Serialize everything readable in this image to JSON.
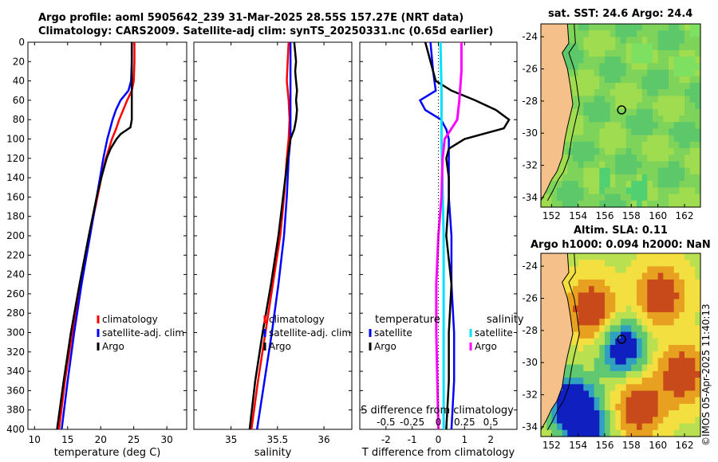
{
  "title_line1": "Argo profile: aoml 5905642_239 31-Mar-2025 28.55S 157.27E (NRT data)",
  "title_line2": "Climatology: CARS2009. Satellite-adj clim: synTS_20250331.nc (0.65d earlier)",
  "sst_map_title": "sat. SST: 24.6 Argo: 24.4",
  "sla_map_title_line1": "Altim. SLA: 0.11",
  "sla_map_title_line2": "Argo h1000: 0.094 h2000: NaN",
  "credit": "©IMOS 05-Apr-2025 11:40:13",
  "colors": {
    "climatology": "#ff0000",
    "satellite": "#0000ff",
    "argo": "#000000",
    "sat_salinity": "#00e0ff",
    "argo_salinity": "#ff00ff"
  },
  "chart_data": [
    {
      "type": "line",
      "name": "temperature",
      "xlabel": "temperature (deg C)",
      "ylabel": "",
      "xlim": [
        9,
        33
      ],
      "ylim": [
        400,
        0
      ],
      "xticks": [
        10,
        15,
        20,
        25,
        30
      ],
      "yticks": [
        0,
        20,
        40,
        60,
        80,
        100,
        120,
        140,
        160,
        180,
        200,
        220,
        240,
        260,
        280,
        300,
        320,
        340,
        360,
        380,
        400
      ],
      "legend": [
        "climatology",
        "satellite-adj. clim",
        "Argo"
      ],
      "series": [
        {
          "name": "climatology",
          "color": "#ff0000",
          "depth": [
            0,
            20,
            40,
            50,
            60,
            70,
            80,
            90,
            100,
            120,
            140,
            160,
            200,
            250,
            300,
            350,
            400
          ],
          "values": [
            25.1,
            25.1,
            25.0,
            24.7,
            24.0,
            23.4,
            22.8,
            22.3,
            21.7,
            20.8,
            20.1,
            19.5,
            18.3,
            16.9,
            15.7,
            14.6,
            13.7
          ]
        },
        {
          "name": "satellite-adj. clim",
          "color": "#0000ff",
          "depth": [
            0,
            20,
            40,
            50,
            60,
            70,
            80,
            90,
            100,
            120,
            140,
            160,
            200,
            250,
            300,
            350,
            400
          ],
          "values": [
            24.7,
            24.7,
            24.6,
            24.2,
            23.0,
            22.3,
            21.8,
            21.4,
            21.0,
            20.4,
            19.9,
            19.4,
            18.4,
            17.1,
            16.0,
            15.0,
            14.1
          ]
        },
        {
          "name": "Argo",
          "color": "#000000",
          "depth": [
            0,
            20,
            40,
            60,
            80,
            88,
            95,
            100,
            110,
            120,
            140,
            160,
            200,
            250,
            300,
            350,
            400
          ],
          "values": [
            24.7,
            24.7,
            24.7,
            24.7,
            24.7,
            24.5,
            23.0,
            22.4,
            21.5,
            20.9,
            20.1,
            19.4,
            18.2,
            16.8,
            15.5,
            14.4,
            13.4
          ]
        }
      ]
    },
    {
      "type": "line",
      "name": "salinity",
      "xlabel": "salinity",
      "ylabel": "",
      "xlim": [
        34.6,
        36.3
      ],
      "ylim": [
        400,
        0
      ],
      "xticks": [
        35,
        35.5,
        36
      ],
      "xtick_labels": [
        "35",
        "35.5",
        "36"
      ],
      "legend": [
        "climatology",
        "satellite-adj. clim",
        "Argo"
      ],
      "series": [
        {
          "name": "climatology",
          "color": "#ff0000",
          "depth": [
            0,
            20,
            40,
            60,
            80,
            100,
            120,
            160,
            200,
            250,
            300,
            350,
            400
          ],
          "values": [
            35.62,
            35.61,
            35.6,
            35.62,
            35.63,
            35.62,
            35.6,
            35.57,
            35.53,
            35.45,
            35.37,
            35.29,
            35.22
          ]
        },
        {
          "name": "satellite-adj. clim",
          "color": "#0000ff",
          "depth": [
            0,
            20,
            40,
            60,
            80,
            100,
            120,
            160,
            200,
            250,
            300,
            350,
            400
          ],
          "values": [
            35.64,
            35.64,
            35.64,
            35.64,
            35.64,
            35.64,
            35.62,
            35.6,
            35.57,
            35.51,
            35.44,
            35.36,
            35.28
          ]
        },
        {
          "name": "Argo",
          "color": "#000000",
          "depth": [
            0,
            10,
            20,
            30,
            40,
            50,
            60,
            70,
            80,
            90,
            100,
            120,
            160,
            200,
            250,
            300,
            350,
            400
          ],
          "values": [
            35.68,
            35.69,
            35.7,
            35.69,
            35.7,
            35.71,
            35.7,
            35.71,
            35.7,
            35.68,
            35.64,
            35.61,
            35.56,
            35.51,
            35.43,
            35.34,
            35.26,
            35.2
          ]
        }
      ]
    },
    {
      "type": "line",
      "name": "difference from climatology",
      "xlabel": "T difference from climatology",
      "ylabel": "",
      "xlim": [
        -3,
        3
      ],
      "ylim": [
        400,
        0
      ],
      "xticks": [
        -2,
        -1,
        0,
        1,
        2
      ],
      "s_axis_label": "S difference from climatology",
      "s_ticks": [
        -0.5,
        -0.25,
        0,
        0.25,
        0.5
      ],
      "s_tick_labels": [
        "-0.5",
        "-0.25",
        "0",
        "0.25",
        "0.5"
      ],
      "legend_headers": [
        "temperature",
        "salinity"
      ],
      "legend": [
        "satellite",
        "Argo",
        "satellite",
        "Argo"
      ],
      "series": [
        {
          "name": "temperature satellite",
          "color": "#0000ff",
          "depth": [
            0,
            30,
            50,
            60,
            70,
            80,
            90,
            100,
            120,
            160,
            200,
            250,
            300,
            350,
            400
          ],
          "values": [
            -0.3,
            -0.2,
            -0.1,
            -0.7,
            -0.5,
            0.1,
            0.3,
            0.4,
            0.4,
            0.4,
            0.5,
            0.5,
            0.6,
            0.6,
            0.5
          ]
        },
        {
          "name": "temperature Argo",
          "color": "#000000",
          "depth": [
            0,
            10,
            20,
            30,
            40,
            50,
            60,
            70,
            80,
            89,
            100,
            110,
            120,
            140,
            160,
            200,
            250,
            300,
            350,
            400
          ],
          "values": [
            -0.5,
            -0.4,
            -0.3,
            -0.2,
            -0.1,
            0.5,
            1.4,
            2.2,
            2.7,
            2.5,
            1.0,
            0.4,
            0.3,
            0.4,
            0.4,
            0.3,
            0.5,
            0.4,
            0.4,
            0.3
          ]
        },
        {
          "name": "salinity satellite",
          "color": "#00e0ff",
          "depth": [
            0,
            50,
            100,
            150,
            200,
            250,
            300,
            350,
            400
          ],
          "values": [
            0.02,
            0.03,
            0.03,
            0.04,
            0.05,
            0.05,
            0.05,
            0.05,
            0.05
          ]
        },
        {
          "name": "salinity Argo",
          "color": "#ff00ff",
          "depth": [
            0,
            30,
            60,
            80,
            90,
            100,
            120,
            160,
            200,
            250,
            300,
            350,
            400
          ],
          "values": [
            0.22,
            0.22,
            0.2,
            0.18,
            0.12,
            0.06,
            0.04,
            0.03,
            0.0,
            -0.02,
            -0.02,
            -0.01,
            0.0
          ]
        }
      ]
    },
    {
      "type": "heatmap",
      "name": "satellite SST map",
      "xlim": [
        151.2,
        163.2
      ],
      "ylim": [
        -34.6,
        -23.2
      ],
      "xticks": [
        152,
        154,
        156,
        158,
        160,
        162
      ],
      "yticks": [
        -24,
        -26,
        -28,
        -30,
        -32,
        -34
      ],
      "argo_position": [
        157.27,
        -28.55
      ]
    },
    {
      "type": "heatmap",
      "name": "altimetry SLA map",
      "xlim": [
        151.2,
        163.2
      ],
      "ylim": [
        -34.6,
        -23.2
      ],
      "xticks": [
        152,
        154,
        156,
        158,
        160,
        162
      ],
      "yticks": [
        -24,
        -26,
        -28,
        -30,
        -32,
        -34
      ],
      "argo_position": [
        157.27,
        -28.55
      ]
    }
  ]
}
